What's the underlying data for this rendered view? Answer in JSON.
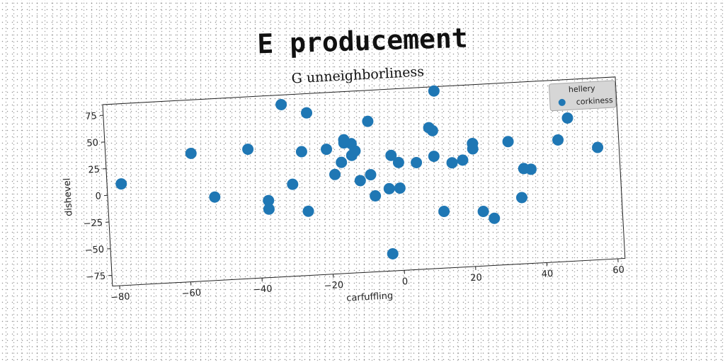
{
  "figure": {
    "suptitle": "E producement"
  },
  "chart_data": {
    "type": "scatter",
    "title": "G unneighborliness",
    "xlabel": "carfuffling",
    "ylabel": "dishevel",
    "xlim": [
      -82,
      62
    ],
    "ylim": [
      -85,
      85
    ],
    "xticks": [
      -80,
      -60,
      -40,
      -20,
      0,
      20,
      40,
      60
    ],
    "yticks": [
      -75,
      -50,
      -25,
      0,
      25,
      50,
      75
    ],
    "xtick_labels": [
      "−80",
      "−60",
      "−40",
      "−20",
      "0",
      "20",
      "40",
      "60"
    ],
    "ytick_labels": [
      "−75",
      "−50",
      "−25",
      "0",
      "25",
      "50",
      "75"
    ],
    "grid": false,
    "legend": {
      "title": "hellery",
      "placement": "top-right"
    },
    "series": [
      {
        "name": "corkiness",
        "color": "#1f77b4",
        "points": [
          [
            -78,
            10
          ],
          [
            -58,
            35
          ],
          [
            -52,
            -7
          ],
          [
            -42,
            36
          ],
          [
            -37,
            -13
          ],
          [
            -37,
            -21
          ],
          [
            -32,
            76
          ],
          [
            -30,
            1
          ],
          [
            -27,
            31
          ],
          [
            -26,
            -25
          ],
          [
            -25,
            67
          ],
          [
            -20,
            32
          ],
          [
            -18,
            8
          ],
          [
            -16,
            19
          ],
          [
            -15,
            40
          ],
          [
            -15,
            37
          ],
          [
            -13,
            36
          ],
          [
            -13,
            25
          ],
          [
            -12,
            29
          ],
          [
            -11,
            1
          ],
          [
            -8,
            56
          ],
          [
            -8,
            6
          ],
          [
            -7,
            -14
          ],
          [
            -3,
            -69
          ],
          [
            -3,
            -8
          ],
          [
            -2,
            23
          ],
          [
            0,
            -8
          ],
          [
            0,
            16
          ],
          [
            5,
            15
          ],
          [
            9,
            47
          ],
          [
            10,
            44
          ],
          [
            10,
            20
          ],
          [
            11,
            81
          ],
          [
            12,
            -32
          ],
          [
            15,
            13
          ],
          [
            18,
            15
          ],
          [
            21,
            30
          ],
          [
            21,
            25
          ],
          [
            23,
            -34
          ],
          [
            26,
            -41
          ],
          [
            31,
            30
          ],
          [
            34,
            -23
          ],
          [
            35,
            4
          ],
          [
            37,
            3
          ],
          [
            45,
            29
          ],
          [
            48,
            49
          ],
          [
            56,
            20
          ]
        ]
      }
    ]
  }
}
